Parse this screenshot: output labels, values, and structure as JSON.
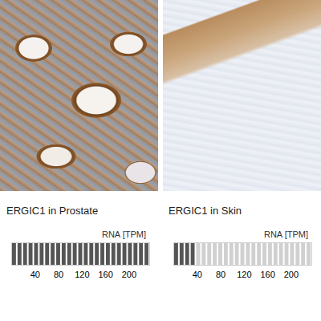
{
  "chart_data": [
    {
      "type": "bar",
      "title": "ERGIC1 in Prostate",
      "xlabel": "RNA [TPM]",
      "categories": [
        "ERGIC1"
      ],
      "values": [
        235
      ],
      "xlim": [
        0,
        235
      ],
      "xticks": [
        40,
        80,
        120,
        160,
        200
      ],
      "orientation": "horizontal",
      "color": "#555555",
      "tick_labels": "x"
    },
    {
      "type": "bar",
      "title": "ERGIC1 in Skin",
      "xlabel": "RNA [TPM]",
      "categories": [
        "ERGIC1"
      ],
      "values": [
        37
      ],
      "xlim": [
        0,
        235
      ],
      "xticks": [
        40,
        80,
        120,
        160,
        200
      ],
      "orientation": "horizontal",
      "color": "#555555",
      "tick_labels": "x"
    }
  ]
}
